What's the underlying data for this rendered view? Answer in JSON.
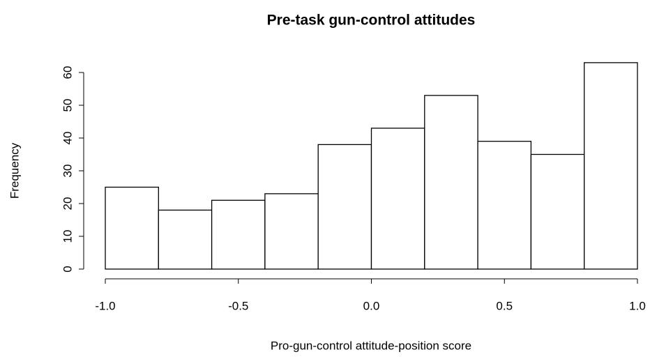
{
  "chart_data": {
    "type": "histogram",
    "title": "Pre-task gun-control attitudes",
    "x_label": "Pro-gun-control attitude-position score",
    "y_label": "Frequency",
    "bins": [
      -1.0,
      -0.8,
      -0.6,
      -0.4,
      -0.2,
      0.0,
      0.2,
      0.4,
      0.6,
      0.8,
      1.0
    ],
    "values": [
      25,
      18,
      21,
      23,
      38,
      43,
      53,
      39,
      35,
      63
    ],
    "color": "#ffffff",
    "edge_color": "#000000",
    "xlim": [
      -1.0,
      1.0
    ],
    "xticks": [
      {
        "value": -1.0,
        "label": "-1.0"
      },
      -0.5,
      {
        "value": 0.0,
        "label": "0.0"
      },
      0.5,
      {
        "value": 1.0,
        "label": "1.0"
      }
    ],
    "ylim": [
      0,
      60
    ],
    "yticks": [
      0,
      10,
      20,
      30,
      40,
      50,
      60
    ]
  }
}
